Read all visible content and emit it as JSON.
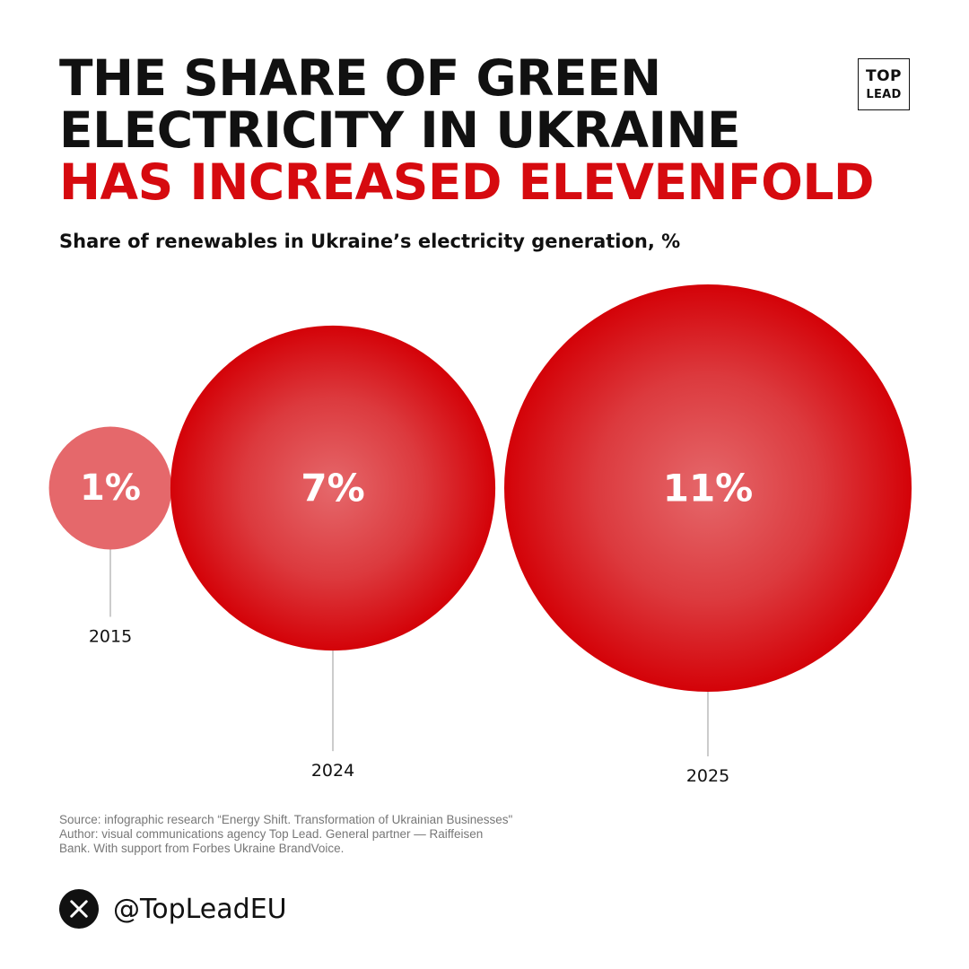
{
  "header": {
    "title_lines": [
      "THE SHARE OF GREEN",
      "ELECTRICITY IN UKRAINE",
      "HAS INCREASED ELEVENFOLD"
    ],
    "accent_color": "#d60a0f"
  },
  "logo": {
    "line1": "TOP",
    "line2": "LEAD"
  },
  "chart_data": {
    "type": "bubble",
    "title": "Share of renewables in Ukraine’s electricity generation, %",
    "categories": [
      "2015",
      "2024",
      "2025"
    ],
    "values": [
      1,
      7,
      11
    ],
    "value_labels": [
      "1%",
      "7%",
      "11%"
    ],
    "unit": "%",
    "colors": {
      "light": "#e5686b",
      "mid": "#dc3a3e",
      "dark": "#d40208"
    }
  },
  "source": {
    "lines": [
      "Source: infographic research “Energy Shift. Transformation of Ukrainian Businesses\"",
      "Author: visual communications agency Top Lead. General partner — Raiffeisen",
      "Bank. With support from Forbes Ukraine BrandVoice."
    ]
  },
  "social": {
    "icon": "x-logo-icon",
    "handle": "@TopLeadEU"
  }
}
